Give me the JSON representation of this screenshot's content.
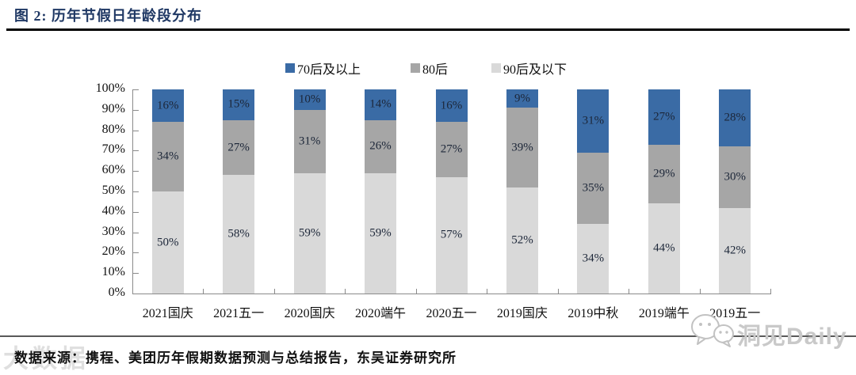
{
  "header": {
    "title": "图 2:  历年节假日年龄段分布"
  },
  "footer": {
    "source": "数据来源：携程、美团历年假期数据预测与总结报告，东吴证券研究所"
  },
  "watermarks": {
    "bottom_left": "大数据",
    "bottom_right": "洞见Daily",
    "bottom_right_icon": "wechat-icon"
  },
  "chart_data": {
    "type": "bar",
    "stacked": true,
    "title": "历年节假日年龄段分布",
    "categories": [
      "2021国庆",
      "2021五一",
      "2020国庆",
      "2020端午",
      "2020五一",
      "2019国庆",
      "2019中秋",
      "2019端午",
      "2019五一"
    ],
    "series": [
      {
        "name": "70后及以上",
        "color": "#3A6BA5",
        "values": [
          16,
          15,
          10,
          14,
          16,
          9,
          31,
          27,
          28
        ]
      },
      {
        "name": "80后",
        "color": "#A6A6A6",
        "values": [
          34,
          27,
          31,
          26,
          27,
          39,
          35,
          29,
          30
        ]
      },
      {
        "name": "90后及以下",
        "color": "#D9D9D9",
        "values": [
          50,
          58,
          59,
          59,
          57,
          52,
          34,
          44,
          42
        ]
      }
    ],
    "stack_order_bottom_to_top": [
      "90后及以下",
      "80后",
      "70后及以上"
    ],
    "ylim": [
      0,
      100
    ],
    "y_tick_step": 10,
    "y_tick_format": "{v}%",
    "value_label_format": "{v}%",
    "grid": false,
    "legend_position": "top",
    "axis_color": "#8a8a8a"
  }
}
